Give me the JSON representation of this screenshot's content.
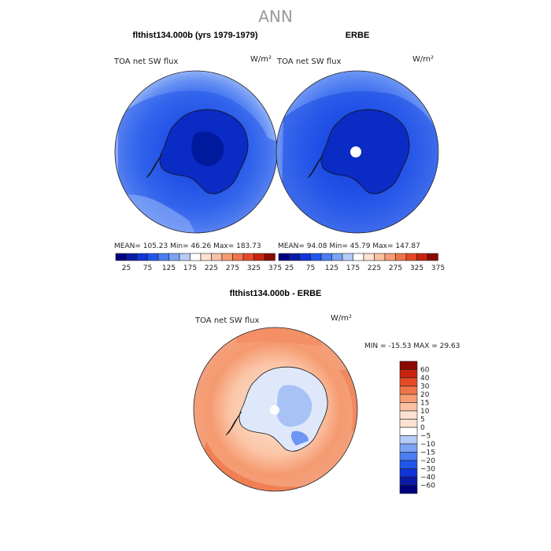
{
  "figure": {
    "title": "ANN",
    "colors": {
      "blues": [
        "#00007f",
        "#0a1aa8",
        "#0f34d8",
        "#2156ec",
        "#4a7ef2",
        "#7ba4f6",
        "#b5cbf8"
      ],
      "reds": [
        "#fde2d2",
        "#fbc1a3",
        "#f79c72",
        "#f0744a",
        "#e44a26",
        "#c9230f",
        "#8a0a00"
      ],
      "neutral": "#ffffff",
      "land_deep": "#0737c9",
      "ocean_light": "#7aa3ee"
    }
  },
  "panels": [
    {
      "title": "flthist134.000b (yrs 1979-1979)",
      "field_label": "TOA net SW flux",
      "units": "W/m²",
      "stats": {
        "mean": "105.23",
        "min": "46.26",
        "max": "183.73"
      },
      "stats_text": "MEAN=  105.23   Min=   46.26   Max=  183.73",
      "colorbar_ticks": [
        "25",
        "75",
        "125",
        "175",
        "225",
        "275",
        "325",
        "375"
      ]
    },
    {
      "title": "ERBE",
      "field_label": "TOA net SW flux",
      "units": "W/m²",
      "stats": {
        "mean": "94.08",
        "min": "45.79",
        "max": "147.87"
      },
      "stats_text": "MEAN=   94.08   Min=   45.79   Max=  147.87",
      "colorbar_ticks": [
        "25",
        "75",
        "125",
        "175",
        "225",
        "275",
        "325",
        "375"
      ]
    }
  ],
  "diff_panel": {
    "title": "flthist134.000b - ERBE",
    "field_label": "TOA net SW flux",
    "units": "W/m²",
    "stats": {
      "min": "-15.53",
      "max": "29.63"
    },
    "stats_text": "MIN = -15.53 MAX =  29.63",
    "colorbar_levels": [
      "60",
      "40",
      "30",
      "20",
      "15",
      "10",
      "5",
      "0",
      "−5",
      "−10",
      "−15",
      "−20",
      "−30",
      "−40",
      "−60"
    ]
  }
}
